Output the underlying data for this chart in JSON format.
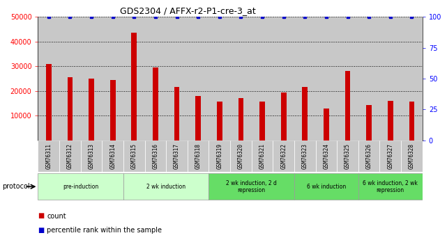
{
  "title": "GDS2304 / AFFX-r2-P1-cre-3_at",
  "samples": [
    "GSM76311",
    "GSM76312",
    "GSM76313",
    "GSM76314",
    "GSM76315",
    "GSM76316",
    "GSM76317",
    "GSM76318",
    "GSM76319",
    "GSM76320",
    "GSM76321",
    "GSM76322",
    "GSM76323",
    "GSM76324",
    "GSM76325",
    "GSM76326",
    "GSM76327",
    "GSM76328"
  ],
  "counts": [
    31000,
    25500,
    25000,
    24500,
    43500,
    29500,
    21500,
    18000,
    15800,
    17000,
    15800,
    19500,
    21500,
    12800,
    28000,
    14300,
    16000,
    15800
  ],
  "percentile_ranks": [
    100,
    100,
    100,
    100,
    100,
    100,
    100,
    100,
    100,
    100,
    100,
    100,
    100,
    100,
    100,
    100,
    100,
    100
  ],
  "bar_color": "#cc0000",
  "dot_color": "#0000cc",
  "ylim_left": [
    0,
    50000
  ],
  "ylim_right": [
    0,
    100
  ],
  "yticks_left": [
    10000,
    20000,
    30000,
    40000,
    50000
  ],
  "yticks_right": [
    0,
    25,
    50,
    75,
    100
  ],
  "col_bg_color": "#c8c8c8",
  "protocol_groups": [
    {
      "label": "pre-induction",
      "start": 0,
      "end": 3,
      "color": "#ccffcc"
    },
    {
      "label": "2 wk induction",
      "start": 4,
      "end": 7,
      "color": "#ccffcc"
    },
    {
      "label": "2 wk induction, 2 d\nrepression",
      "start": 8,
      "end": 11,
      "color": "#66dd66"
    },
    {
      "label": "6 wk induction",
      "start": 12,
      "end": 14,
      "color": "#66dd66"
    },
    {
      "label": "6 wk induction, 2 wk\nrepression",
      "start": 15,
      "end": 17,
      "color": "#66dd66"
    }
  ],
  "legend_count_label": "count",
  "legend_pct_label": "percentile rank within the sample",
  "protocol_label": "protocol",
  "background_color": "#ffffff"
}
